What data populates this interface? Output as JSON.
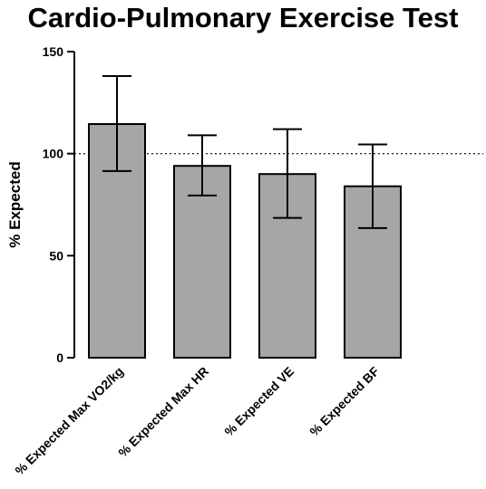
{
  "chart_data": {
    "type": "bar",
    "title": "Cardio-Pulmonary Exercise Test",
    "xlabel": "",
    "ylabel": "% Expected",
    "ylim": [
      0,
      150
    ],
    "yticks": [
      0,
      50,
      100,
      150
    ],
    "reference_line": 100,
    "categories": [
      "% Expected Max VO2/kg",
      "% Expected Max HR",
      "% Expected VE",
      "% Expected BF"
    ],
    "values": [
      114.5,
      94,
      90,
      84
    ],
    "error_upper": [
      138,
      109,
      112,
      104.5
    ],
    "error_lower": [
      91.5,
      79.5,
      68.5,
      63.5
    ],
    "grid": false,
    "bar_color": "#a6a6a6"
  }
}
